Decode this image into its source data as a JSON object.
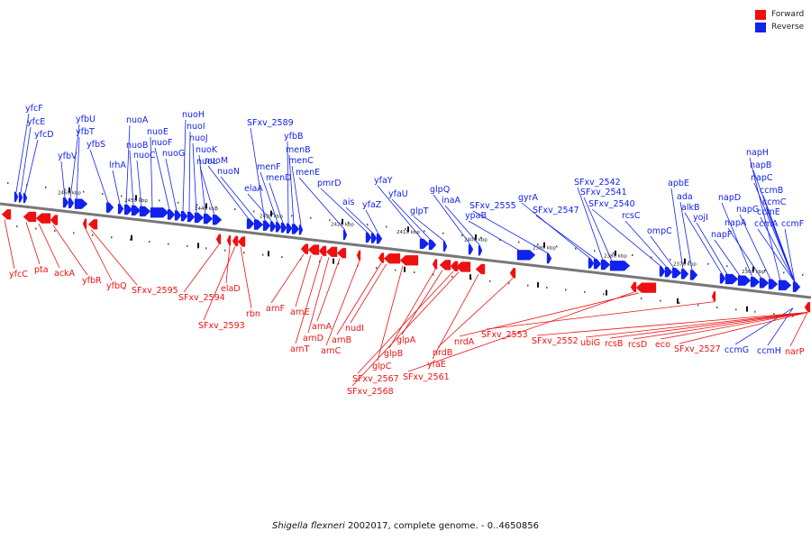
{
  "legend": {
    "forward_label": "Forward",
    "reverse_label": "Reverse",
    "forward_color": "#ee1111",
    "reverse_color": "#1122ee"
  },
  "caption": {
    "organism": "Shigella flexneri",
    "strain_text": " 2002017, complete genome. - 0..4650856"
  },
  "scale_labels": [
    "2460 kbp",
    "2450 kbp",
    "2440 kbp",
    "2430 kbp",
    "2420 kbp",
    "2410 kbp",
    "2400 kbp",
    "2390 kbp",
    "2380 kbp",
    "2370 kbp",
    "2360 kbp"
  ],
  "reverse_genes": [
    "yfcF",
    "yfcE",
    "yfcD",
    "yfbV",
    "yfbU",
    "yfbT",
    "yfbS",
    "lrhA",
    "nuoA",
    "nuoB",
    "nuoC",
    "nuoE",
    "nuoF",
    "nuoG",
    "nuoH",
    "nuoI",
    "nuoJ",
    "nuoK",
    "nuoL",
    "nuoM",
    "nuoN",
    "SFxv_2589",
    "elaA",
    "menF",
    "menD",
    "yfbB",
    "menB",
    "menC",
    "menE",
    "pmrD",
    "ais",
    "yfaZ",
    "yfaY",
    "yfaU",
    "glpT",
    "glpQ",
    "inaA",
    "ypaB",
    "SFxv_2555",
    "gyrA",
    "SFxv_2547",
    "SFxv_2542",
    "SFxv_2541",
    "SFxv_2540",
    "rcsC",
    "ompC",
    "apbE",
    "ada",
    "alkB",
    "yojI",
    "napF",
    "napD",
    "napA",
    "napG",
    "napH",
    "napB",
    "napC",
    "ccmA",
    "ccmB",
    "ccmC",
    "ccmE",
    "ccmF",
    "ccmG",
    "ccmH"
  ],
  "forward_genes": [
    "yfcC",
    "pta",
    "ackA",
    "yfbR",
    "yfbQ",
    "SFxv_2595",
    "SFxv_2594",
    "elaD",
    "SFxv_2593",
    "rbn",
    "arnF",
    "arnE",
    "arnT",
    "arnD",
    "arnA",
    "arnC",
    "arnB",
    "nudI",
    "glpC",
    "glpB",
    "glpA",
    "SFxv_2567",
    "SFxv_2568",
    "yfaE",
    "nrdB",
    "SFxv_2561",
    "nrdA",
    "SFxv_2553",
    "SFxv_2552",
    "ubiG",
    "rcsB",
    "rcsD",
    "eco",
    "SFxv_2527",
    "narP"
  ]
}
